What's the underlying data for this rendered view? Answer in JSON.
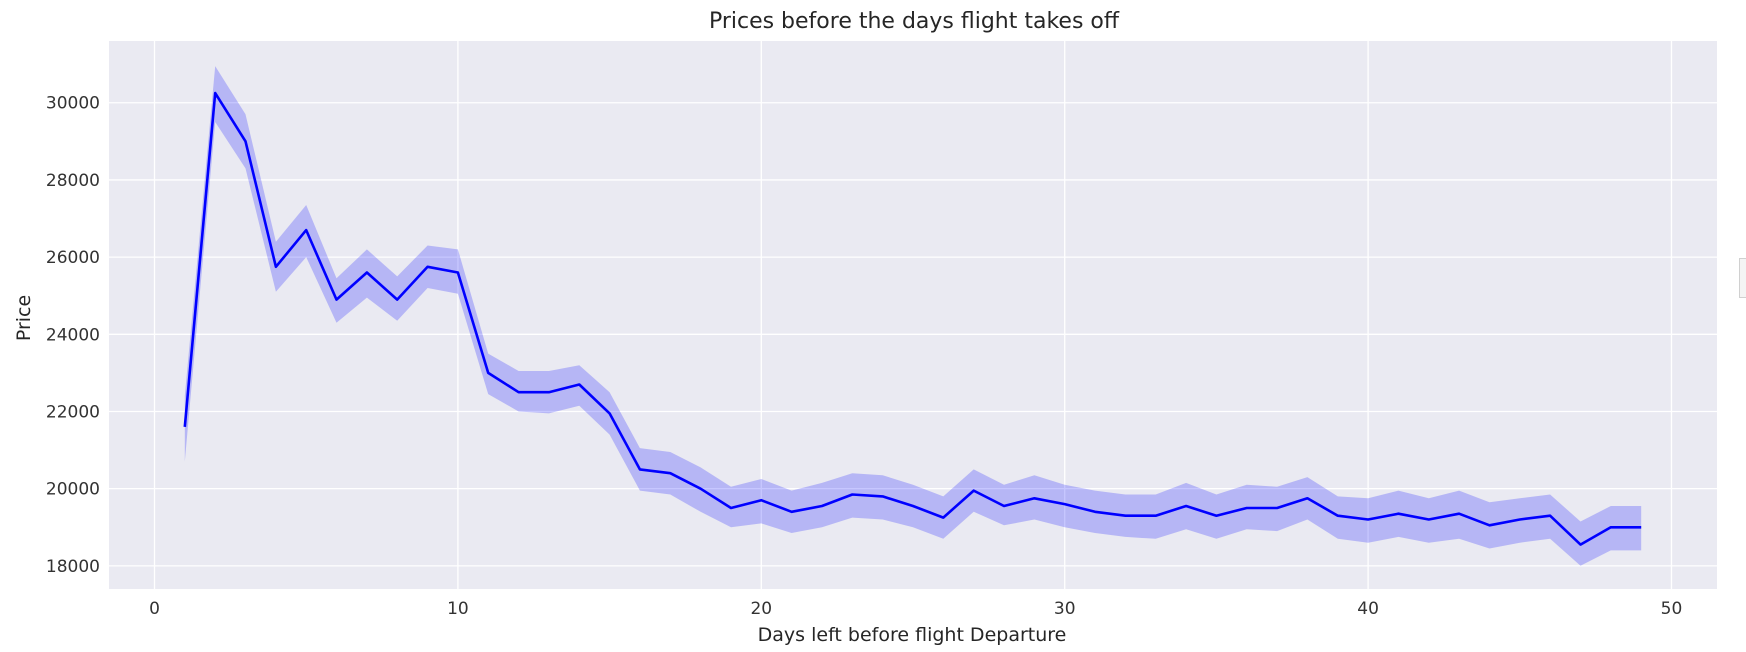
{
  "chart_data": {
    "type": "line",
    "title": "Prices before the days flight takes off",
    "xlabel": "Days left before flight Departure",
    "ylabel": "Price",
    "xlim": [
      -1.5,
      51.5
    ],
    "ylim": [
      17400,
      31600
    ],
    "xticks": [
      0,
      10,
      20,
      30,
      40,
      50
    ],
    "yticks": [
      18000,
      20000,
      22000,
      24000,
      26000,
      28000,
      30000
    ],
    "grid": true,
    "line_color": "#0000ff",
    "band_color": "#0000ff",
    "background_color": "#eaeaf2",
    "series": [
      {
        "x": [
          1,
          2,
          3,
          4,
          5,
          6,
          7,
          8,
          9,
          10,
          11,
          12,
          13,
          14,
          15,
          16,
          17,
          18,
          19,
          20,
          21,
          22,
          23,
          24,
          25,
          26,
          27,
          28,
          29,
          30,
          31,
          32,
          33,
          34,
          35,
          36,
          37,
          38,
          39,
          40,
          41,
          42,
          43,
          44,
          45,
          46,
          47,
          48,
          49
        ],
        "y": [
          21600,
          30250,
          29000,
          25750,
          26700,
          24900,
          25600,
          24900,
          25750,
          25600,
          23000,
          22500,
          22500,
          22700,
          21950,
          20500,
          20400,
          20000,
          19500,
          19700,
          19400,
          19550,
          19850,
          19800,
          19550,
          19250,
          19950,
          19550,
          19750,
          19600,
          19400,
          19300,
          19300,
          19550,
          19300,
          19500,
          19500,
          19750,
          19300,
          19200,
          19350,
          19200,
          19350,
          19050,
          19200,
          19300,
          18550,
          19000,
          19000
        ],
        "ci_lower": [
          20700,
          29500,
          28300,
          25100,
          26000,
          24300,
          24950,
          24350,
          25200,
          25050,
          22450,
          22000,
          21950,
          22150,
          21400,
          19950,
          19850,
          19400,
          19000,
          19100,
          18850,
          19000,
          19250,
          19200,
          19000,
          18700,
          19400,
          19050,
          19200,
          19000,
          18850,
          18750,
          18700,
          18950,
          18700,
          18950,
          18900,
          19200,
          18700,
          18600,
          18750,
          18600,
          18700,
          18450,
          18600,
          18700,
          18000,
          18400,
          18400
        ],
        "ci_upper": [
          22400,
          30950,
          29700,
          26400,
          27350,
          25450,
          26200,
          25500,
          26300,
          26200,
          23500,
          23050,
          23050,
          23200,
          22500,
          21050,
          20950,
          20550,
          20050,
          20250,
          19950,
          20150,
          20400,
          20350,
          20100,
          19800,
          20500,
          20100,
          20350,
          20100,
          19950,
          19850,
          19850,
          20150,
          19850,
          20100,
          20050,
          20300,
          19800,
          19750,
          19950,
          19750,
          19950,
          19650,
          19750,
          19850,
          19150,
          19550,
          19550
        ]
      }
    ]
  }
}
